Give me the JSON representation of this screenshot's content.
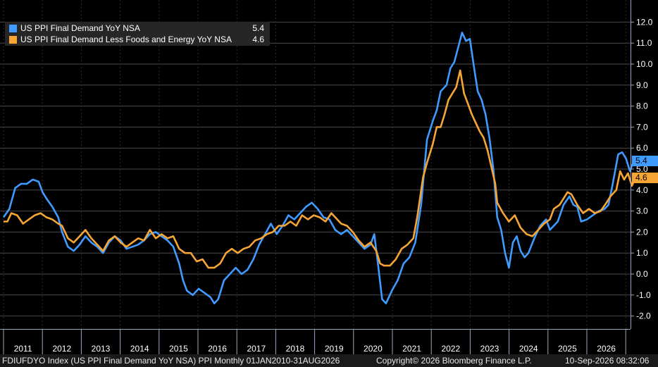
{
  "chart_data": {
    "type": "line",
    "title": "",
    "xlabel": "",
    "ylabel": "",
    "x_tick_labels": [
      "2011",
      "2012",
      "2013",
      "2014",
      "2015",
      "2016",
      "2017",
      "2018",
      "2019",
      "2020",
      "2021",
      "2022",
      "2023",
      "2024",
      "2025",
      "2026"
    ],
    "y_tick_labels": [
      "-2.0",
      "-1.0",
      "0.0",
      "1.0",
      "2.0",
      "3.0",
      "4.0",
      "5.0",
      "6.0",
      "7.0",
      "8.0",
      "9.0",
      "10.0",
      "11.0",
      "12.0"
    ],
    "ylim": [
      -2.0,
      12.0
    ],
    "xlim": [
      2010.5,
      2026.7
    ],
    "grid": true,
    "legend_position": "top-left",
    "axis_position": "right",
    "series": [
      {
        "name": "US PPI Final Demand YoY NSA",
        "last_value": "5.4",
        "color": "#3f9bff",
        "points": [
          [
            2010.5,
            2.7
          ],
          [
            2010.65,
            3.1
          ],
          [
            2010.8,
            4.1
          ],
          [
            2010.95,
            4.3
          ],
          [
            2011.1,
            4.3
          ],
          [
            2011.25,
            4.5
          ],
          [
            2011.4,
            4.4
          ],
          [
            2011.5,
            3.9
          ],
          [
            2011.6,
            3.6
          ],
          [
            2011.75,
            3.2
          ],
          [
            2011.9,
            2.7
          ],
          [
            2012.0,
            2.0
          ],
          [
            2012.15,
            1.3
          ],
          [
            2012.3,
            1.1
          ],
          [
            2012.45,
            1.4
          ],
          [
            2012.6,
            1.8
          ],
          [
            2012.75,
            1.5
          ],
          [
            2012.9,
            1.3
          ],
          [
            2013.05,
            1.0
          ],
          [
            2013.2,
            1.5
          ],
          [
            2013.35,
            1.8
          ],
          [
            2013.5,
            1.6
          ],
          [
            2013.65,
            1.2
          ],
          [
            2013.8,
            1.3
          ],
          [
            2013.95,
            1.4
          ],
          [
            2014.1,
            1.6
          ],
          [
            2014.25,
            1.9
          ],
          [
            2014.4,
            2.0
          ],
          [
            2014.55,
            1.8
          ],
          [
            2014.7,
            1.6
          ],
          [
            2014.85,
            1.3
          ],
          [
            2015.0,
            0.5
          ],
          [
            2015.1,
            -0.3
          ],
          [
            2015.2,
            -0.8
          ],
          [
            2015.35,
            -1.0
          ],
          [
            2015.5,
            -0.7
          ],
          [
            2015.65,
            -0.9
          ],
          [
            2015.8,
            -1.1
          ],
          [
            2015.9,
            -1.4
          ],
          [
            2016.0,
            -1.2
          ],
          [
            2016.15,
            -0.3
          ],
          [
            2016.3,
            0.0
          ],
          [
            2016.45,
            0.3
          ],
          [
            2016.6,
            0.0
          ],
          [
            2016.75,
            0.2
          ],
          [
            2016.9,
            0.7
          ],
          [
            2017.05,
            1.4
          ],
          [
            2017.2,
            1.9
          ],
          [
            2017.35,
            2.4
          ],
          [
            2017.5,
            1.9
          ],
          [
            2017.65,
            2.3
          ],
          [
            2017.8,
            2.8
          ],
          [
            2017.95,
            2.6
          ],
          [
            2018.1,
            2.9
          ],
          [
            2018.25,
            3.2
          ],
          [
            2018.4,
            3.4
          ],
          [
            2018.55,
            3.1
          ],
          [
            2018.7,
            2.7
          ],
          [
            2018.85,
            2.6
          ],
          [
            2019.0,
            2.1
          ],
          [
            2019.15,
            1.9
          ],
          [
            2019.3,
            2.1
          ],
          [
            2019.45,
            1.8
          ],
          [
            2019.6,
            1.5
          ],
          [
            2019.75,
            1.2
          ],
          [
            2019.9,
            1.4
          ],
          [
            2020.0,
            1.9
          ],
          [
            2020.1,
            0.4
          ],
          [
            2020.2,
            -1.2
          ],
          [
            2020.3,
            -1.4
          ],
          [
            2020.45,
            -0.8
          ],
          [
            2020.6,
            -0.3
          ],
          [
            2020.75,
            0.5
          ],
          [
            2020.9,
            0.8
          ],
          [
            2021.05,
            1.5
          ],
          [
            2021.2,
            3.3
          ],
          [
            2021.35,
            6.4
          ],
          [
            2021.5,
            7.3
          ],
          [
            2021.6,
            7.8
          ],
          [
            2021.7,
            8.7
          ],
          [
            2021.85,
            9.0
          ],
          [
            2021.95,
            9.8
          ],
          [
            2022.05,
            10.1
          ],
          [
            2022.15,
            10.8
          ],
          [
            2022.25,
            11.5
          ],
          [
            2022.35,
            11.1
          ],
          [
            2022.45,
            11.2
          ],
          [
            2022.55,
            9.9
          ],
          [
            2022.65,
            8.7
          ],
          [
            2022.75,
            8.3
          ],
          [
            2022.85,
            7.6
          ],
          [
            2022.95,
            6.5
          ],
          [
            2023.05,
            5.0
          ],
          [
            2023.15,
            2.7
          ],
          [
            2023.25,
            2.1
          ],
          [
            2023.35,
            1.0
          ],
          [
            2023.45,
            0.3
          ],
          [
            2023.55,
            1.5
          ],
          [
            2023.65,
            1.8
          ],
          [
            2023.75,
            1.1
          ],
          [
            2023.85,
            0.8
          ],
          [
            2023.95,
            1.0
          ],
          [
            2024.1,
            1.7
          ],
          [
            2024.25,
            2.3
          ],
          [
            2024.4,
            2.6
          ],
          [
            2024.5,
            2.1
          ],
          [
            2024.6,
            2.3
          ],
          [
            2024.7,
            2.5
          ],
          [
            2024.85,
            3.3
          ],
          [
            2025.0,
            3.7
          ],
          [
            2025.1,
            3.3
          ],
          [
            2025.2,
            3.2
          ],
          [
            2025.3,
            2.5
          ],
          [
            2025.45,
            2.6
          ],
          [
            2025.6,
            2.8
          ],
          [
            2025.75,
            3.0
          ],
          [
            2025.9,
            3.1
          ],
          [
            2026.0,
            3.3
          ],
          [
            2026.1,
            4.2
          ],
          [
            2026.25,
            5.7
          ],
          [
            2026.35,
            5.8
          ],
          [
            2026.45,
            5.5
          ],
          [
            2026.55,
            4.9
          ],
          [
            2026.65,
            5.4
          ]
        ]
      },
      {
        "name": "US PPI Final Demand Less Foods and Energy YoY NSA",
        "last_value": "4.6",
        "color": "#f7a535",
        "points": [
          [
            2010.5,
            2.5
          ],
          [
            2010.6,
            2.5
          ],
          [
            2010.7,
            2.9
          ],
          [
            2010.85,
            2.8
          ],
          [
            2011.0,
            2.4
          ],
          [
            2011.15,
            2.6
          ],
          [
            2011.3,
            2.8
          ],
          [
            2011.45,
            2.9
          ],
          [
            2011.6,
            2.7
          ],
          [
            2011.75,
            2.6
          ],
          [
            2011.9,
            2.4
          ],
          [
            2012.0,
            2.3
          ],
          [
            2012.15,
            1.7
          ],
          [
            2012.3,
            1.5
          ],
          [
            2012.45,
            1.8
          ],
          [
            2012.6,
            2.1
          ],
          [
            2012.75,
            1.7
          ],
          [
            2012.9,
            1.4
          ],
          [
            2013.05,
            1.1
          ],
          [
            2013.2,
            1.6
          ],
          [
            2013.35,
            1.8
          ],
          [
            2013.5,
            1.5
          ],
          [
            2013.65,
            1.3
          ],
          [
            2013.8,
            1.5
          ],
          [
            2013.95,
            1.7
          ],
          [
            2014.1,
            1.6
          ],
          [
            2014.25,
            2.1
          ],
          [
            2014.4,
            1.7
          ],
          [
            2014.55,
            1.9
          ],
          [
            2014.7,
            1.7
          ],
          [
            2014.85,
            1.8
          ],
          [
            2015.0,
            1.2
          ],
          [
            2015.15,
            1.0
          ],
          [
            2015.3,
            1.0
          ],
          [
            2015.45,
            0.6
          ],
          [
            2015.6,
            0.7
          ],
          [
            2015.75,
            0.3
          ],
          [
            2015.9,
            0.3
          ],
          [
            2016.05,
            0.5
          ],
          [
            2016.2,
            1.0
          ],
          [
            2016.35,
            1.2
          ],
          [
            2016.5,
            1.0
          ],
          [
            2016.65,
            1.2
          ],
          [
            2016.8,
            1.3
          ],
          [
            2016.95,
            1.6
          ],
          [
            2017.1,
            1.7
          ],
          [
            2017.25,
            1.9
          ],
          [
            2017.4,
            2.0
          ],
          [
            2017.55,
            2.3
          ],
          [
            2017.7,
            2.3
          ],
          [
            2017.85,
            2.5
          ],
          [
            2018.0,
            2.3
          ],
          [
            2018.15,
            2.8
          ],
          [
            2018.3,
            2.6
          ],
          [
            2018.45,
            2.8
          ],
          [
            2018.6,
            2.7
          ],
          [
            2018.75,
            2.5
          ],
          [
            2018.9,
            2.9
          ],
          [
            2019.0,
            2.7
          ],
          [
            2019.15,
            2.4
          ],
          [
            2019.3,
            2.3
          ],
          [
            2019.45,
            2.0
          ],
          [
            2019.6,
            1.6
          ],
          [
            2019.75,
            1.3
          ],
          [
            2019.9,
            1.5
          ],
          [
            2020.05,
            1.1
          ],
          [
            2020.15,
            0.5
          ],
          [
            2020.25,
            0.4
          ],
          [
            2020.4,
            0.4
          ],
          [
            2020.55,
            0.7
          ],
          [
            2020.7,
            1.2
          ],
          [
            2020.85,
            1.4
          ],
          [
            2021.0,
            1.7
          ],
          [
            2021.1,
            2.7
          ],
          [
            2021.25,
            4.6
          ],
          [
            2021.35,
            5.3
          ],
          [
            2021.5,
            6.2
          ],
          [
            2021.6,
            7.0
          ],
          [
            2021.7,
            7.0
          ],
          [
            2021.8,
            7.6
          ],
          [
            2021.9,
            8.3
          ],
          [
            2022.0,
            8.6
          ],
          [
            2022.1,
            8.9
          ],
          [
            2022.2,
            9.7
          ],
          [
            2022.3,
            8.6
          ],
          [
            2022.4,
            8.1
          ],
          [
            2022.5,
            7.6
          ],
          [
            2022.6,
            7.2
          ],
          [
            2022.7,
            6.8
          ],
          [
            2022.8,
            6.5
          ],
          [
            2022.9,
            5.9
          ],
          [
            2023.0,
            5.1
          ],
          [
            2023.1,
            4.3
          ],
          [
            2023.15,
            3.4
          ],
          [
            2023.3,
            2.9
          ],
          [
            2023.45,
            2.5
          ],
          [
            2023.6,
            2.8
          ],
          [
            2023.75,
            2.2
          ],
          [
            2023.9,
            1.9
          ],
          [
            2024.05,
            1.8
          ],
          [
            2024.2,
            2.1
          ],
          [
            2024.35,
            2.4
          ],
          [
            2024.5,
            2.6
          ],
          [
            2024.6,
            3.1
          ],
          [
            2024.75,
            3.3
          ],
          [
            2024.85,
            3.6
          ],
          [
            2024.95,
            3.9
          ],
          [
            2025.05,
            3.8
          ],
          [
            2025.2,
            3.3
          ],
          [
            2025.35,
            2.9
          ],
          [
            2025.5,
            3.1
          ],
          [
            2025.65,
            2.9
          ],
          [
            2025.8,
            3.0
          ],
          [
            2025.95,
            3.4
          ],
          [
            2026.05,
            3.7
          ],
          [
            2026.2,
            4.0
          ],
          [
            2026.3,
            4.9
          ],
          [
            2026.4,
            4.5
          ],
          [
            2026.5,
            4.8
          ],
          [
            2026.6,
            4.2
          ],
          [
            2026.7,
            4.6
          ]
        ]
      }
    ]
  },
  "footer": {
    "left": "FDIUFDYO Index (US PPI Final Demand YoY NSA) PPI Monthly 01JAN2010-31AUG2026",
    "center": "Copyright© 2026 Bloomberg Finance L.P.",
    "right": "10-Sep-2026 08:32:06"
  }
}
